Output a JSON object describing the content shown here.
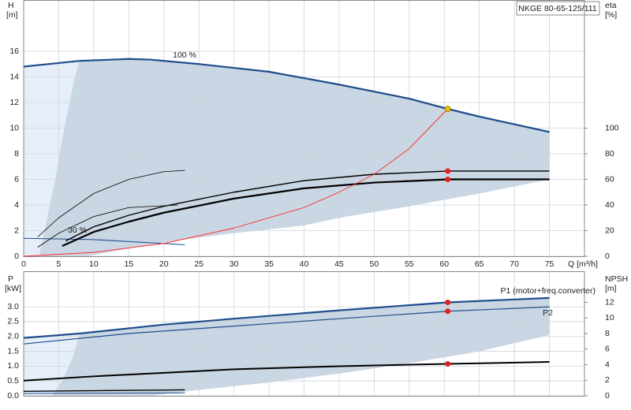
{
  "chart_data": [
    {
      "type": "line",
      "title": "NKGE 80-65-125/111",
      "xlabel": "Q [m³/h]",
      "ylabel": "H",
      "yunit": "[m]",
      "y2label": "eta",
      "y2unit": "[%]",
      "xlim": [
        0,
        80
      ],
      "xticks": [
        0,
        5,
        10,
        15,
        20,
        25,
        30,
        35,
        40,
        45,
        50,
        55,
        60,
        65,
        70,
        75
      ],
      "ylim": [
        0,
        20
      ],
      "yticks": [
        0,
        2,
        4,
        6,
        8,
        10,
        12,
        14,
        16
      ],
      "y2lim": [
        0,
        200
      ],
      "y2ticks": [
        0,
        20,
        40,
        60,
        80,
        100
      ],
      "grid": true,
      "regions": [
        {
          "color": "#e6eff9",
          "x": [
            0,
            8,
            7.3,
            5.8,
            4.5,
            2.2,
            0
          ],
          "values": [
            14.8,
            15.25,
            14,
            10,
            6,
            0,
            0
          ]
        },
        {
          "color": "#c9d6e3",
          "x": [
            8,
            15,
            25,
            35,
            45,
            55,
            65,
            75,
            75,
            65,
            55,
            45,
            40,
            30,
            20,
            12,
            9,
            2.2,
            4.5,
            5.8,
            7.3
          ],
          "values": [
            15.25,
            15.4,
            15.0,
            14.4,
            13.4,
            12.3,
            10.9,
            9.7,
            6.0,
            4.9,
            3.9,
            3.0,
            2.4,
            1.8,
            1.1,
            0.3,
            0,
            0,
            6,
            10,
            14
          ]
        }
      ],
      "series": [
        {
          "name": "100 %",
          "color": "#1f4e8c",
          "width": 2.2,
          "x": [
            0,
            8,
            15,
            18,
            25,
            35,
            45,
            55,
            60.5,
            65,
            75
          ],
          "values": [
            14.8,
            15.25,
            15.4,
            15.35,
            15.0,
            14.4,
            13.4,
            12.3,
            11.5,
            10.9,
            9.7
          ]
        },
        {
          "name": "30 %",
          "color": "#1f4e8c",
          "width": 1.1,
          "x": [
            0,
            10,
            23
          ],
          "values": [
            1.4,
            1.3,
            0.9
          ]
        },
        {
          "color": "#000000",
          "width": 2.2,
          "x": [
            5.5,
            10,
            15,
            20,
            30,
            40,
            50,
            60.5,
            75
          ],
          "values": [
            0.8,
            1.9,
            2.7,
            3.4,
            4.5,
            5.3,
            5.75,
            6.0,
            6.0
          ]
        },
        {
          "color": "#000000",
          "width": 1.4,
          "x": [
            6,
            10,
            15,
            20,
            30,
            40,
            50,
            60.5,
            75
          ],
          "values": [
            1.2,
            2.3,
            3.2,
            3.9,
            5.0,
            5.9,
            6.4,
            6.65,
            6.65
          ]
        },
        {
          "color": "#000000",
          "width": 0.8,
          "x": [
            2,
            5,
            10,
            15,
            20,
            23
          ],
          "values": [
            1.5,
            3.0,
            4.9,
            6.0,
            6.6,
            6.7
          ]
        },
        {
          "color": "#000000",
          "width": 0.8,
          "x": [
            2,
            5,
            10,
            15,
            22
          ],
          "values": [
            0.7,
            1.8,
            3.1,
            3.8,
            4.0
          ]
        },
        {
          "color": "#ff2a2a",
          "width": 0.9,
          "axis": "y2",
          "x": [
            0,
            10,
            20,
            30,
            40,
            45,
            50,
            55,
            60.5
          ],
          "values": [
            0,
            3,
            10,
            22,
            38,
            50,
            64,
            84,
            115
          ]
        },
        {
          "color": "#e81c1c",
          "marker": "dot",
          "x": [
            60.5,
            60.5
          ],
          "values": [
            6.65,
            6.0
          ]
        },
        {
          "color": "#f2c200",
          "marker": "dot",
          "x": [
            60.5
          ],
          "values": [
            11.5
          ]
        }
      ]
    },
    {
      "type": "line",
      "ylabel": "P",
      "yunit": "[kW]",
      "y2label": "NPSH",
      "y2unit": "[m]",
      "xlim": [
        0,
        80
      ],
      "xticks": [
        0,
        5,
        10,
        15,
        20,
        25,
        30,
        35,
        40,
        45,
        50,
        55,
        60,
        65,
        70,
        75
      ],
      "ylim": [
        0,
        4.2
      ],
      "yticks": [
        {
          "value": 0,
          "label": "0.0"
        },
        0.5,
        {
          "value": 1,
          "label": "1.0"
        },
        1.5,
        {
          "value": 2,
          "label": "2.0"
        },
        2.5,
        {
          "value": 3,
          "label": "3.0"
        }
      ],
      "y2lim": [
        0,
        16
      ],
      "y2ticks": [
        0,
        2,
        4,
        6,
        8,
        10,
        12
      ],
      "grid": true,
      "regions": [
        {
          "color": "#e6eff9",
          "x": [
            0,
            8,
            7,
            5.5,
            4,
            0
          ],
          "values": [
            1.95,
            2.1,
            1.3,
            0.5,
            0,
            0
          ]
        },
        {
          "color": "#c9d6e3",
          "x": [
            8,
            20,
            30,
            45,
            60.5,
            75,
            75,
            65,
            55,
            45,
            35,
            25,
            18,
            4,
            5.5,
            7
          ],
          "values": [
            2.1,
            2.4,
            2.6,
            2.88,
            3.15,
            3.3,
            2.05,
            1.5,
            1.1,
            0.75,
            0.45,
            0.2,
            0,
            0,
            0.5,
            1.3
          ]
        }
      ],
      "series": [
        {
          "name": "P1 (motor+freq.converter)",
          "color": "#1f4e8c",
          "width": 2.2,
          "x": [
            0,
            8,
            20,
            30,
            45,
            60.5,
            75
          ],
          "values": [
            1.95,
            2.1,
            2.4,
            2.6,
            2.88,
            3.15,
            3.3
          ]
        },
        {
          "name": "P2",
          "color": "#1f4e8c",
          "width": 1.2,
          "x": [
            0,
            15,
            30,
            45,
            60.5,
            75
          ],
          "values": [
            1.75,
            2.1,
            2.35,
            2.6,
            2.85,
            3.0
          ]
        },
        {
          "color": "#000000",
          "width": 2,
          "axis": "y2",
          "x": [
            0,
            10,
            20,
            30,
            45,
            60.5,
            75
          ],
          "values": [
            1.95,
            2.5,
            2.95,
            3.4,
            3.8,
            4.1,
            4.35
          ]
        },
        {
          "color": "#000000",
          "width": 1.4,
          "x": [
            0,
            23
          ],
          "values": [
            0.15,
            0.2
          ]
        },
        {
          "color": "#1f4e8c",
          "width": 1,
          "x": [
            0,
            23
          ],
          "values": [
            0.08,
            0.1
          ]
        },
        {
          "color": "#e81c1c",
          "marker": "dot",
          "x": [
            60.5,
            60.5
          ],
          "values": [
            3.15,
            2.85
          ]
        },
        {
          "color": "#e81c1c",
          "marker": "dot",
          "axis": "y2",
          "x": [
            60.5
          ],
          "values": [
            4.1
          ]
        }
      ]
    }
  ]
}
